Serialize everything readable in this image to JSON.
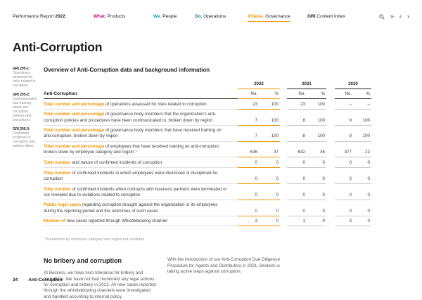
{
  "colors": {
    "accent_orange": "#f39200",
    "nav_magenta": "#d6006e",
    "nav_teal": "#00a0af",
    "nav_green": "#00867a",
    "text_dark": "#1d1d1b"
  },
  "header": {
    "brand": {
      "regular": "Performance Report ",
      "bold": "2022"
    },
    "nav": [
      {
        "prefix": "What.",
        "label": " Products",
        "active": false
      },
      {
        "prefix": "We.",
        "label": " People",
        "active": false
      },
      {
        "prefix": "Do.",
        "label": " Operations",
        "active": false
      },
      {
        "prefix": "&Value.",
        "label": " Governance",
        "active": true
      },
      {
        "prefix": "GRI",
        "label": " Content Index",
        "active": false
      }
    ],
    "icons": [
      {
        "name": "search",
        "glyph": ""
      },
      {
        "name": "double-chevron-right",
        "glyph": "»"
      },
      {
        "name": "chevron-left",
        "glyph": "‹"
      },
      {
        "name": "chevron-right",
        "glyph": "›"
      }
    ]
  },
  "page_title": "Anti-Corruption",
  "sidebar_notes": [
    {
      "code": "GRI 205-1:",
      "text": "Operations assessed for risks related to corruption"
    },
    {
      "code": "GRI 205-2:",
      "text": "Communication and training about anti-corruption policies and procedures"
    },
    {
      "code": "GRI 205-3:",
      "text": "Confirmed incidents of corruption and actions taken"
    }
  ],
  "section_title": "Overview of Anti-Corruption data and background information",
  "table": {
    "row_header": "Anti-Corruption",
    "years": [
      "2022",
      "2021",
      "2020"
    ],
    "subheaders": [
      "No.",
      "%"
    ],
    "rows": [
      {
        "lead": "Total number and percentage",
        "rest": " of operations assessed for risks related to corruption",
        "values": [
          "23",
          "100",
          "23",
          "100",
          "–",
          "–"
        ]
      },
      {
        "lead": "Total number and percentage",
        "rest": " of governance body members that the organization's anti-corruption policies and procedures have been communicated to, broken down by region",
        "values": [
          "7",
          "100",
          "8",
          "100",
          "9",
          "100"
        ]
      },
      {
        "lead": "Total number and percentage",
        "rest": " of governance body members that have received training on anti-corruption, broken down by region",
        "values": [
          "7",
          "100",
          "8",
          "100",
          "9",
          "100"
        ]
      },
      {
        "lead": "Total number and percentage",
        "rest": " of employees that have received training on anti-corruption, broken down by employee category and region ¹",
        "values": [
          "636",
          "37",
          "632",
          "36",
          "377",
          "22"
        ]
      },
      {
        "lead": "Total number",
        "rest": " and nature of confirmed incidents of corruption",
        "values": [
          "0",
          "0",
          "0",
          "0",
          "0",
          "0"
        ]
      },
      {
        "lead": "Total number",
        "rest": " of confirmed incidents in which employees were dismissed or disciplined for corruption",
        "values": [
          "0",
          "0",
          "0",
          "0",
          "0",
          "0"
        ]
      },
      {
        "lead": "Total number",
        "rest": " of confirmed incidents when contracts with business partners were terminated or not renewed due to violations related to corruption",
        "values": [
          "0",
          "0",
          "0",
          "0",
          "0",
          "0"
        ]
      },
      {
        "lead": "Public legal cases",
        "rest": " regarding corruption brought against the organization or its employees during the reporting period and the outcomes of such cases",
        "values": [
          "0",
          "0",
          "0",
          "0",
          "0",
          "0"
        ]
      },
      {
        "lead": "Number of",
        "rest": " new cases reported through Whistleblowing channel",
        "values": [
          "3",
          "0",
          "1",
          "0",
          "3",
          "0"
        ]
      }
    ],
    "footnote": "¹  Breakdown by employee category and region not available"
  },
  "no_bribery": {
    "heading": "No bribery and corruption",
    "col1": "At Beckers, we have zero tolerance for bribery and corruption. We have not had monitored any legal actions for corruption and bribery in 2022. All new cases reported through the whistleblowing channels were investigated and handled according to internal policy.",
    "col2": "With the introduction of our Anti-Corruption Due Diligence Procedure for Agents and Distributors in 2021, Beckers is taking active steps against corruption."
  },
  "footer": {
    "page": "34",
    "label": "Anti-Corruption"
  }
}
